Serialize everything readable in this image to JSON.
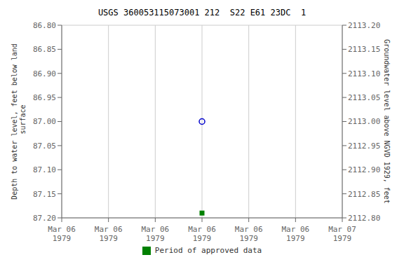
{
  "chart_data": {
    "type": "scatter",
    "title": "USGS 360053115073001 212  S22 E61 23DC  1",
    "y_label": "Depth to water level, feet below land\n surface",
    "y2_label": "Groundwater level above NGVD 1929, feet",
    "categories": [
      "Mar 06\n1979",
      "Mar 06\n1979",
      "Mar 06\n1979",
      "Mar 06\n1979",
      "Mar 06\n1979",
      "Mar 06\n1979",
      "Mar 07\n1979"
    ],
    "series": [
      {
        "color": "#0000cc",
        "marker": "circle_open",
        "values": [
          null,
          null,
          null,
          87.0,
          null,
          null,
          null
        ]
      },
      {
        "name": "Period of approved data",
        "color": "#008000",
        "marker": "square",
        "values": [
          null,
          null,
          null,
          87.19,
          null,
          null,
          null
        ]
      }
    ],
    "ylim": [
      87.2,
      86.8
    ],
    "yticks": [
      {
        "value": 86.8,
        "label": "86.80"
      },
      {
        "value": 86.85,
        "label": "86.85"
      },
      {
        "value": 86.9,
        "label": "86.90"
      },
      {
        "value": 86.95,
        "label": "86.95"
      },
      {
        "value": 87.0,
        "label": "87.00"
      },
      {
        "value": 87.05,
        "label": "87.05"
      },
      {
        "value": 87.1,
        "label": "87.10"
      },
      {
        "value": 87.15,
        "label": "87.15"
      },
      {
        "value": 87.2,
        "label": "87.20"
      }
    ],
    "y2lim": [
      2112.8,
      2113.2
    ],
    "y2ticks": [
      {
        "value": 2113.2,
        "label": "2113.20"
      },
      {
        "value": 2113.15,
        "label": "2113.15"
      },
      {
        "value": 2113.1,
        "label": "2113.10"
      },
      {
        "value": 2113.05,
        "label": "2113.05"
      },
      {
        "value": 2113.0,
        "label": "2113.00"
      },
      {
        "value": 2112.95,
        "label": "2112.95"
      },
      {
        "value": 2112.9,
        "label": "2112.90"
      },
      {
        "value": 2112.85,
        "label": "2112.85"
      },
      {
        "value": 2112.8,
        "label": "2112.80"
      }
    ],
    "grid": true,
    "legend": "bottom"
  }
}
